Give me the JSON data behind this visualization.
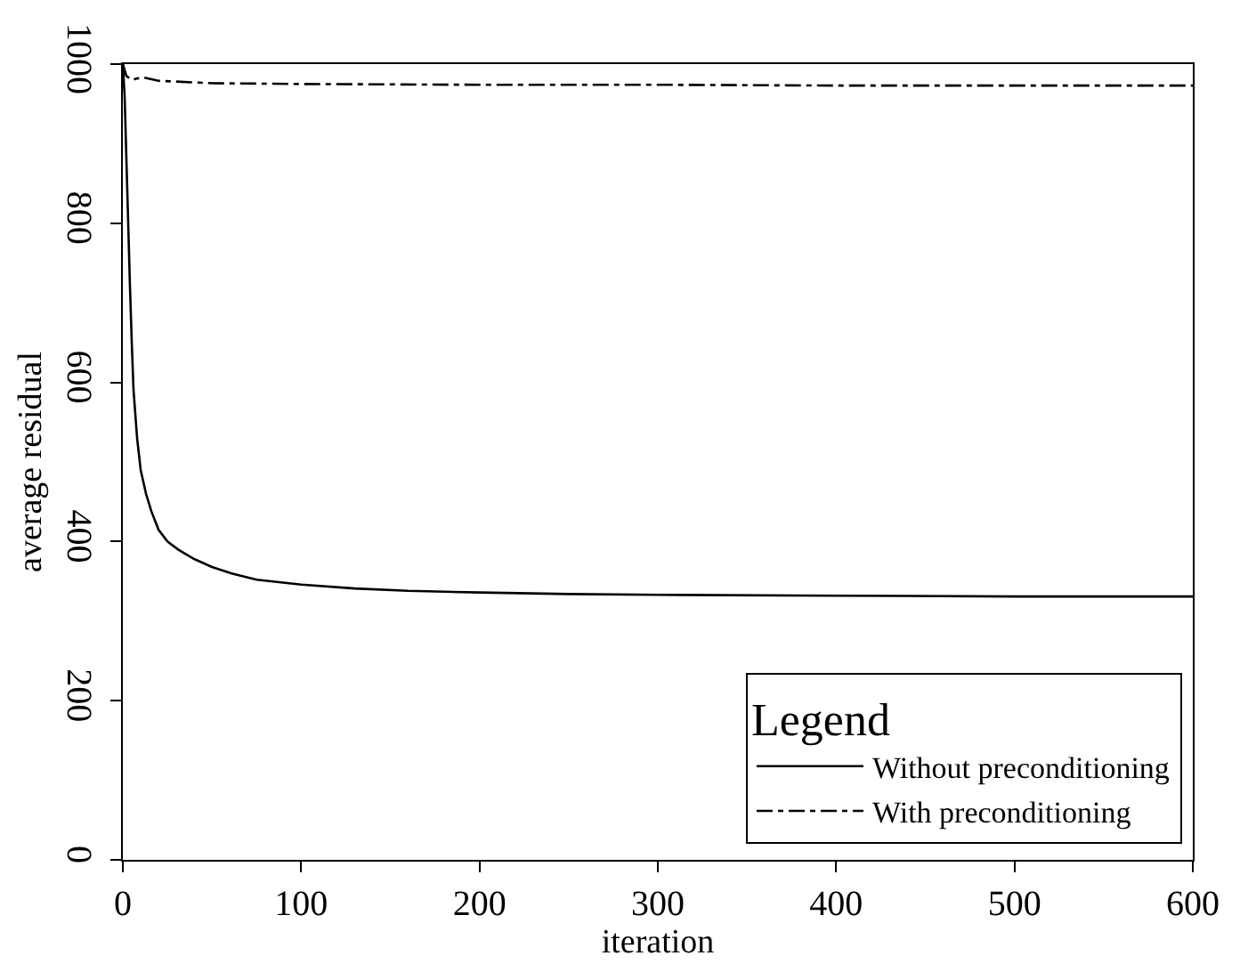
{
  "chart_data": {
    "type": "line",
    "xlabel": "iteration",
    "ylabel": "average residual",
    "legend_title": "Legend",
    "xlim": [
      0,
      600
    ],
    "ylim": [
      0,
      1000
    ],
    "xticks": [
      0,
      100,
      200,
      300,
      400,
      500,
      600
    ],
    "yticks": [
      0,
      200,
      400,
      600,
      800,
      1000
    ],
    "legend": "bottom right",
    "marker": "none",
    "series": [
      {
        "name": "Without preconditioning",
        "color": "#000000",
        "line_style": "solid",
        "x": [
          0,
          1,
          2,
          3,
          4,
          5,
          6,
          8,
          10,
          13,
          16,
          20,
          25,
          31,
          40,
          50,
          61,
          75,
          100,
          130,
          160,
          200,
          250,
          300,
          400,
          500,
          600
        ],
        "values": [
          1000,
          960,
          880,
          800,
          720,
          650,
          590,
          530,
          490,
          460,
          438,
          415,
          400,
          390,
          378,
          368,
          360,
          352,
          346,
          341,
          338,
          336,
          334,
          333,
          332,
          331,
          331
        ]
      },
      {
        "name": "With preconditioning",
        "color": "#000000",
        "line_style": "dashdot",
        "x": [
          0,
          2,
          5,
          8,
          12,
          20,
          50,
          100,
          200,
          300,
          400,
          500,
          600
        ],
        "values": [
          1000,
          985,
          980,
          982,
          983,
          979,
          976,
          975,
          974,
          974,
          973,
          973,
          973
        ]
      }
    ]
  }
}
